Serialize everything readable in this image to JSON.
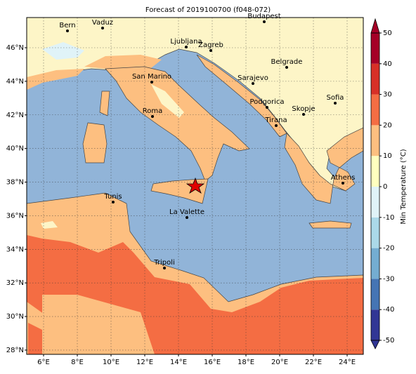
{
  "title": "Forecast of 2019100700 (f048-072)",
  "map": {
    "lon_ticks": [
      {
        "value": 6,
        "label": "6°E"
      },
      {
        "value": 8,
        "label": "8°E"
      },
      {
        "value": 10,
        "label": "10°E"
      },
      {
        "value": 12,
        "label": "12°E"
      },
      {
        "value": 14,
        "label": "14°E"
      },
      {
        "value": 16,
        "label": "16°E"
      },
      {
        "value": 18,
        "label": "18°E"
      },
      {
        "value": 20,
        "label": "20°E"
      },
      {
        "value": 22,
        "label": "22°E"
      },
      {
        "value": 24,
        "label": "24°E"
      }
    ],
    "lat_ticks": [
      {
        "value": 28,
        "label": "28°N"
      },
      {
        "value": 30,
        "label": "30°N"
      },
      {
        "value": 32,
        "label": "32°N"
      },
      {
        "value": 34,
        "label": "34°N"
      },
      {
        "value": 36,
        "label": "36°N"
      },
      {
        "value": 38,
        "label": "38°N"
      },
      {
        "value": 40,
        "label": "40°N"
      },
      {
        "value": 42,
        "label": "42°N"
      },
      {
        "value": 44,
        "label": "44°N"
      },
      {
        "value": 46,
        "label": "46°N"
      }
    ],
    "cities": [
      "Bern",
      "Vaduz",
      "Budapest",
      "Ljubljana",
      "Zagreb",
      "Belgrade",
      "San Marino",
      "Sarajevo",
      "Sofia",
      "Podgorica",
      "Skopje",
      "Roma",
      "Tirana",
      "Athens",
      "Tunis",
      "La Valette",
      "Tripoli"
    ]
  },
  "colorbar": {
    "label": "Min Temperature (°C)",
    "ticks": [
      -50,
      -40,
      -30,
      -20,
      -10,
      0,
      10,
      20,
      30,
      40,
      50
    ],
    "colors": [
      "#313695",
      "#4575b4",
      "#74add1",
      "#abd9e9",
      "#e0f3f8",
      "#ffffbf",
      "#fdbf80",
      "#f46d43",
      "#d73027",
      "#a50026"
    ]
  }
}
